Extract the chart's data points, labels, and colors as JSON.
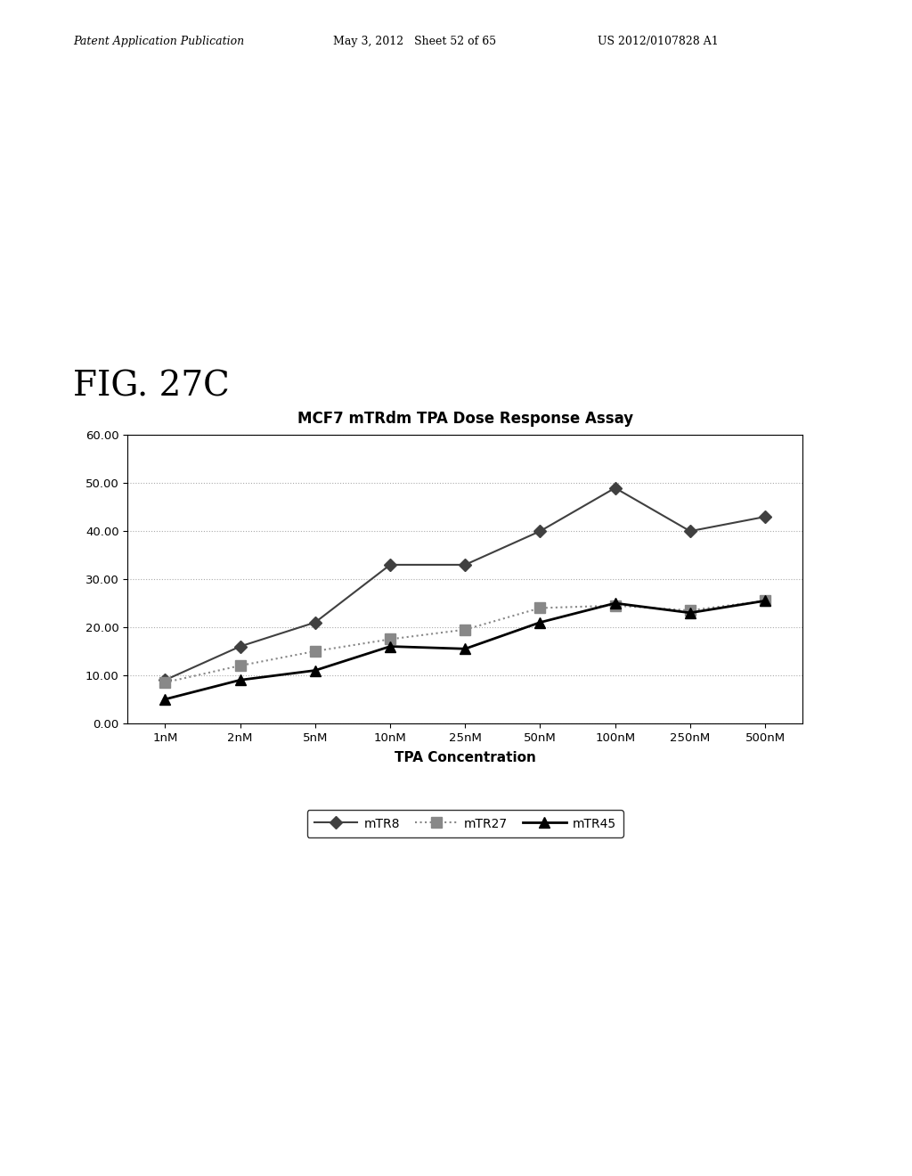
{
  "title": "MCF7 mTRdm TPA Dose Response Assay",
  "xlabel": "TPA Concentration",
  "ylabel": "",
  "fig_label": "FIG. 27C",
  "header_left": "Patent Application Publication",
  "header_mid": "May 3, 2012   Sheet 52 of 65",
  "header_right": "US 2012/0107828 A1",
  "x_labels": [
    "1nM",
    "2nM",
    "5nM",
    "10nM",
    "25nM",
    "50nM",
    "100nM",
    "250nM",
    "500nM"
  ],
  "ylim": [
    0.0,
    60.0
  ],
  "yticks": [
    0.0,
    10.0,
    20.0,
    30.0,
    40.0,
    50.0,
    60.0
  ],
  "series": [
    {
      "name": "mTR8",
      "values": [
        9.0,
        16.0,
        21.0,
        33.0,
        33.0,
        40.0,
        49.0,
        40.0,
        43.0
      ],
      "color": "#404040",
      "marker": "D",
      "markersize": 7,
      "linewidth": 1.5,
      "linestyle": "-"
    },
    {
      "name": "mTR27",
      "values": [
        8.5,
        12.0,
        15.0,
        17.5,
        19.5,
        24.0,
        24.5,
        23.5,
        25.5
      ],
      "color": "#888888",
      "marker": "s",
      "markersize": 9,
      "linewidth": 1.5,
      "linestyle": ":"
    },
    {
      "name": "mTR45",
      "values": [
        5.0,
        9.0,
        11.0,
        16.0,
        15.5,
        21.0,
        25.0,
        23.0,
        25.5
      ],
      "color": "#000000",
      "marker": "^",
      "markersize": 9,
      "linewidth": 2.0,
      "linestyle": "-"
    }
  ],
  "background_color": "#ffffff",
  "grid_color": "#aaaaaa",
  "title_fontsize": 12,
  "axis_label_fontsize": 11,
  "tick_fontsize": 9.5,
  "legend_fontsize": 10,
  "fig_label_fontsize": 28,
  "header_fontsize": 9
}
